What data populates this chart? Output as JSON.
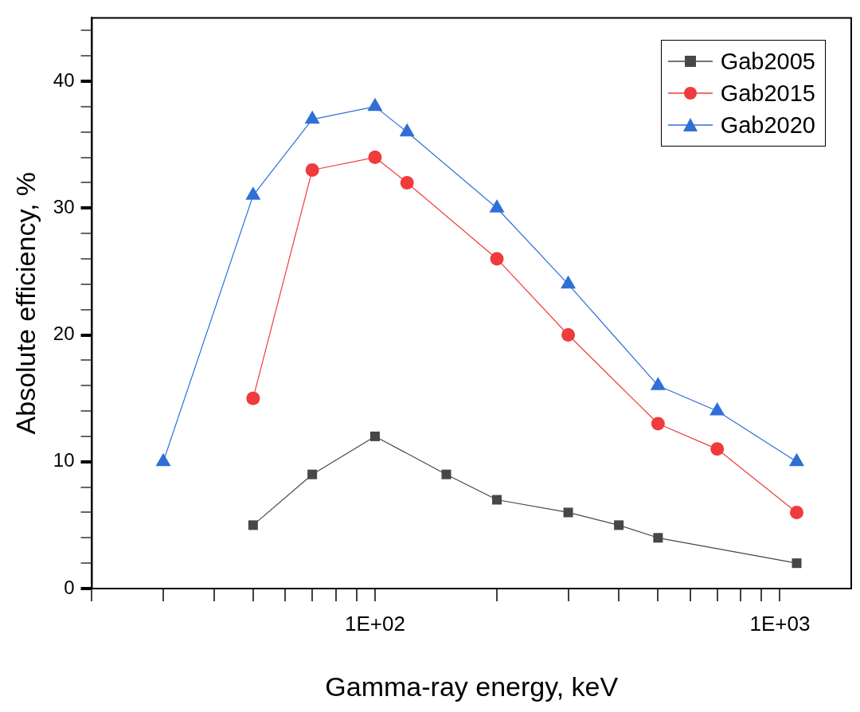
{
  "chart_data": {
    "type": "line",
    "xlabel": "Gamma-ray energy, keV",
    "ylabel": "Absolute efficiency, %",
    "log": "x",
    "xlim": [
      20,
      1500
    ],
    "xticks": [
      {
        "value": 20,
        "label": null
      },
      {
        "value": 30,
        "label": null
      },
      {
        "value": 40,
        "label": null
      },
      {
        "value": 50,
        "label": null
      },
      {
        "value": 60,
        "label": null
      },
      {
        "value": 70,
        "label": null
      },
      {
        "value": 80,
        "label": null
      },
      {
        "value": 90,
        "label": null
      },
      {
        "value": 100,
        "label": "1E+02"
      },
      {
        "value": 200,
        "label": null
      },
      {
        "value": 300,
        "label": null
      },
      {
        "value": 400,
        "label": null
      },
      {
        "value": 500,
        "label": null
      },
      {
        "value": 600,
        "label": null
      },
      {
        "value": 700,
        "label": null
      },
      {
        "value": 800,
        "label": null
      },
      {
        "value": 900,
        "label": null
      },
      {
        "value": 1000,
        "label": "1E+03"
      }
    ],
    "ylim": [
      0,
      45
    ],
    "yticks": [
      0,
      {
        "value": 2,
        "label": null
      },
      {
        "value": 4,
        "label": null
      },
      {
        "value": 6,
        "label": null
      },
      {
        "value": 8,
        "label": null
      },
      10,
      {
        "value": 12,
        "label": null
      },
      {
        "value": 14,
        "label": null
      },
      {
        "value": 16,
        "label": null
      },
      {
        "value": 18,
        "label": null
      },
      20,
      {
        "value": 22,
        "label": null
      },
      {
        "value": 24,
        "label": null
      },
      {
        "value": 26,
        "label": null
      },
      {
        "value": 28,
        "label": null
      },
      30,
      {
        "value": 32,
        "label": null
      },
      {
        "value": 34,
        "label": null
      },
      {
        "value": 36,
        "label": null
      },
      {
        "value": 38,
        "label": null
      },
      40,
      {
        "value": 42,
        "label": null
      },
      {
        "value": 44,
        "label": null
      }
    ],
    "grid": false,
    "legend": "top right",
    "line_style": "solid",
    "series": [
      {
        "name": "Gab2005",
        "color": "#474747",
        "marker": "square",
        "x": [
          50,
          70,
          100,
          150,
          200,
          300,
          400,
          500,
          1100
        ],
        "values": [
          5,
          9,
          12,
          9,
          7,
          6,
          5,
          4,
          2
        ]
      },
      {
        "name": "Gab2015",
        "color": "#ef3b3b",
        "marker": "circle",
        "x": [
          50,
          70,
          100,
          120,
          200,
          300,
          500,
          700,
          1100
        ],
        "values": [
          15,
          33,
          34,
          32,
          26,
          20,
          13,
          11,
          6
        ]
      },
      {
        "name": "Gab2020",
        "color": "#2f6fd6",
        "marker": "triangle",
        "x": [
          30,
          50,
          70,
          100,
          120,
          200,
          300,
          500,
          700,
          1100
        ],
        "values": [
          10,
          31,
          37,
          38,
          36,
          30,
          24,
          16,
          14,
          10
        ]
      }
    ]
  }
}
